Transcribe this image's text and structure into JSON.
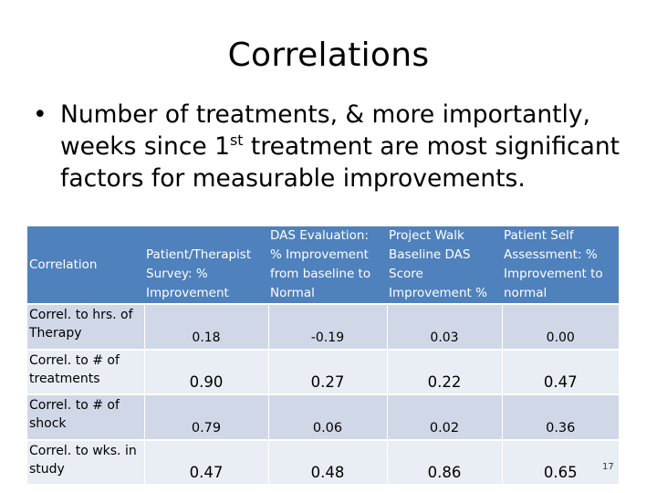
{
  "slide": {
    "title": "Correlations",
    "bullet_before_sup": "Number of treatments, & more importantly, weeks since 1",
    "bullet_sup": "st",
    "bullet_after_sup": " treatment are most significant factors for measurable improvements.",
    "page_number": "17"
  },
  "table": {
    "header_correlation": "Correlation",
    "header_col1_lines": [
      "",
      "Patient/Therapist",
      "Survey: %",
      "Improvement"
    ],
    "header_col2_lines": [
      "DAS Evaluation:",
      "% Improvement",
      "from baseline to",
      "Normal"
    ],
    "header_col3_lines": [
      "Project Walk",
      "Baseline DAS",
      "Score",
      "Improvement %"
    ],
    "header_col4_lines": [
      "Patient Self",
      "Assessment: %",
      "Improvement to",
      "normal"
    ],
    "rows": [
      {
        "label": "Correl. to hrs.  of Therapy",
        "values": [
          "0.18",
          "-0.19",
          "0.03",
          "0.00"
        ]
      },
      {
        "label": "Correl. to # of treatments",
        "values": [
          "0.90",
          "0.27",
          "0.22",
          "0.47"
        ]
      },
      {
        "label": "Correl. to # of shock",
        "values": [
          "0.79",
          "0.06",
          "0.02",
          "0.36"
        ]
      },
      {
        "label": "Correl. to wks. in study",
        "values": [
          "0.47",
          "0.48",
          "0.86",
          "0.65"
        ]
      }
    ]
  }
}
